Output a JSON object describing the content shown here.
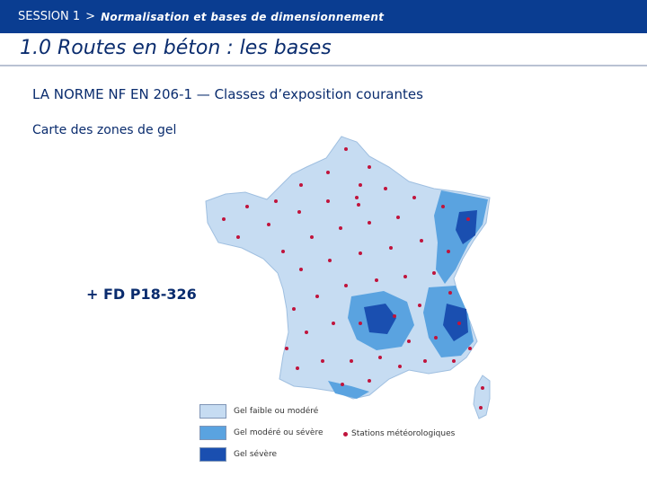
{
  "header": {
    "session": "SESSION 1",
    "separator": ">",
    "subtitle": "Normalisation et bases de dimensionnement"
  },
  "title": "1.0 Routes en béton : les bases",
  "heading": "LA NORME NF EN 206-1 — Classes d’exposition courantes",
  "subheading": "Carte des zones de gel",
  "reference": "+ FD P18-326",
  "legend": {
    "items": [
      {
        "label": "Gel faible ou modéré",
        "color": "#c6dcf2"
      },
      {
        "label": "Gel modéré ou sévère",
        "color": "#5aa3e0"
      },
      {
        "label": "Gel sévère",
        "color": "#1a4fb0"
      }
    ],
    "stations_label": "Stations météorologiques",
    "station_color": "#c0143c"
  },
  "colors": {
    "header_bg": "#0a3d91",
    "title_text": "#0a2c6e"
  }
}
